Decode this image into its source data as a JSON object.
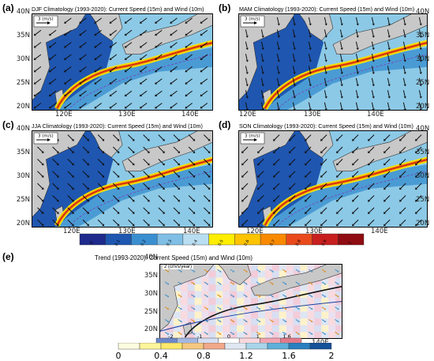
{
  "figure": {
    "panels": [
      {
        "id": "a",
        "label": "(a)",
        "title": "DJF Climatology (1993-2020): Current Speed (15m) and Wind (10m)",
        "ref": "3 (m/s)"
      },
      {
        "id": "b",
        "label": "(b)",
        "title": "MAM Climatology (1993-2020): Current Speed (15m) and Wind (10m)",
        "ref": "3 (m/s)"
      },
      {
        "id": "c",
        "label": "(c)",
        "title": "JJA Climatology (1993-2020): Current Speed (15m) and Wind (10m)",
        "ref": "3 (m/s)"
      },
      {
        "id": "d",
        "label": "(d)",
        "title": "SON Climatology (1993-2020): Current Speed (15m) and Wind (10m)",
        "ref": "3 (m/s)"
      }
    ],
    "trend": {
      "label": "(e)",
      "title": "Trend (1993-2020): Current Speed (15m) and Wind (10m)",
      "ref": "2 (cm/s/year)"
    },
    "lat_labels": [
      "40N",
      "35N",
      "30N",
      "25N",
      "20N"
    ],
    "lon_labels": [
      "120E",
      "130E",
      "140E"
    ],
    "colorbar_main": {
      "ticks": [
        "0",
        "0.1",
        "0.2",
        "0.3",
        "0.4",
        "0.5",
        "0.6",
        "0.7",
        "0.8",
        "0.9",
        "1"
      ],
      "colors": [
        "#1f2a8c",
        "#1d57b0",
        "#3a8fd0",
        "#7fbfe6",
        "#b9def2",
        "#ffee00",
        "#ffc400",
        "#f98a00",
        "#ea4a1b",
        "#c81f1f",
        "#8f0d12"
      ]
    },
    "colorbar_trend_top": {
      "ticks": [
        "-2",
        "-1",
        "0",
        "1",
        "1.6"
      ],
      "colors": [
        "#6b87c9",
        "#a3b7e2",
        "#d5def2",
        "#ffffff",
        "#f8d8dd",
        "#f0a6b2",
        "#e37a8a"
      ]
    },
    "colorbar_trend_bottom": {
      "ticks": [
        "0",
        "0.4",
        "0.8",
        "1.2",
        "1.6",
        "2"
      ],
      "colors": [
        "#fffde0",
        "#fff59b",
        "#fde86a",
        "#f6c880",
        "#f1a88a",
        "#dfe8f2",
        "#a9d4ea",
        "#5fb0d9",
        "#2a7fbf",
        "#14529a"
      ]
    }
  }
}
